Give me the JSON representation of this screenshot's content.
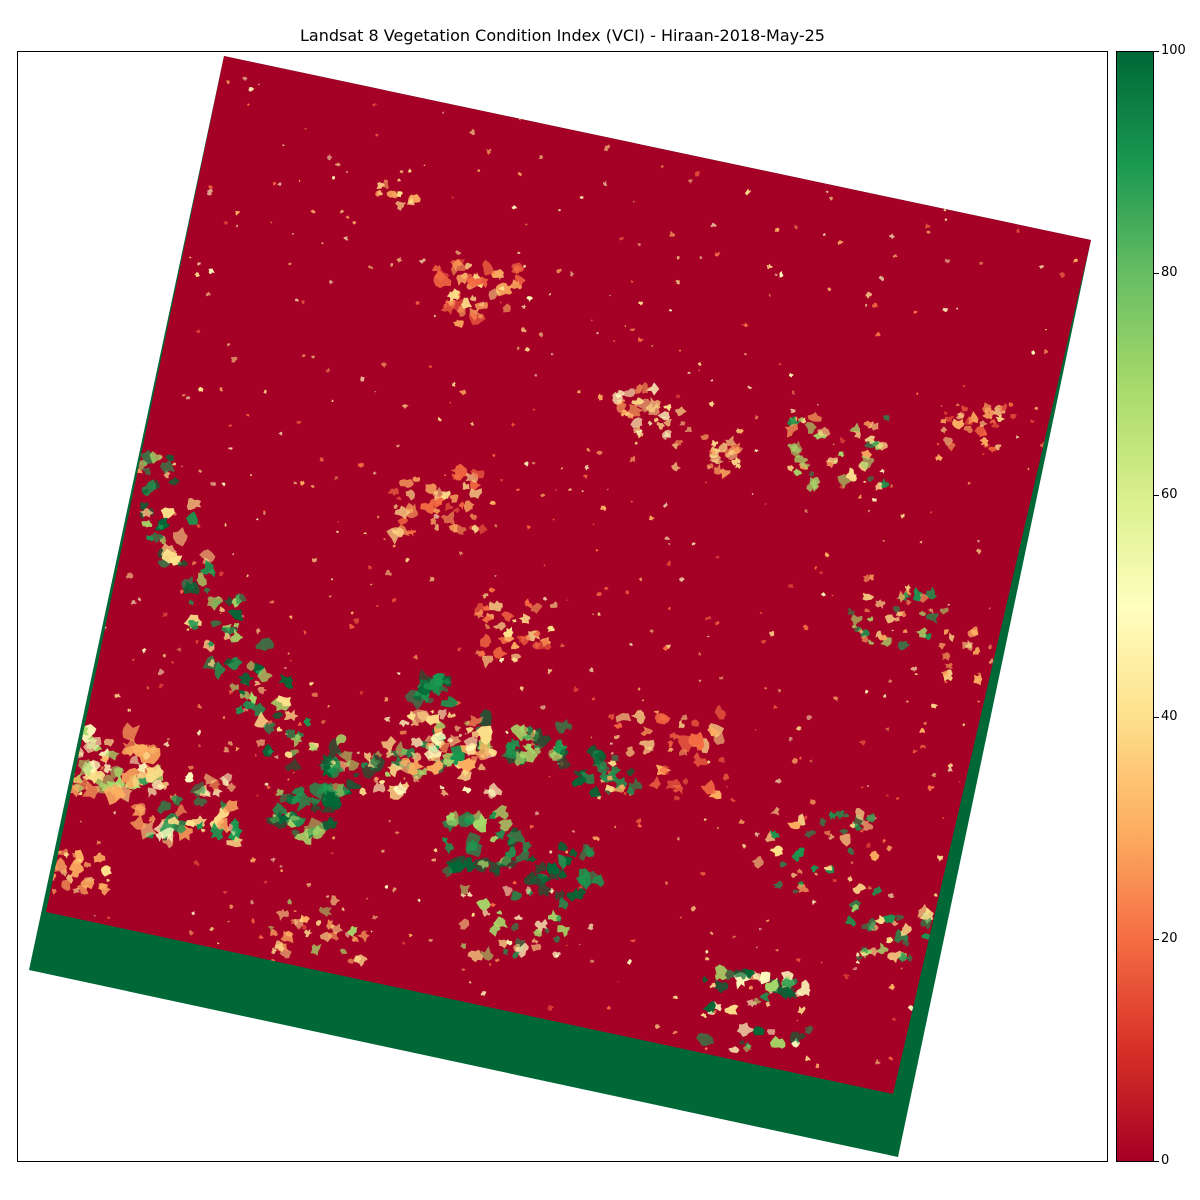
{
  "title": "Landsat 8 Vegetation Condition Index (VCI) - Hiraan-2018-May-25",
  "colorbar": {
    "colormap": "RdYlGn",
    "min": 0,
    "max": 100,
    "ticks": [
      {
        "value": 0,
        "label": "0"
      },
      {
        "value": 20,
        "label": "20"
      },
      {
        "value": 40,
        "label": "40"
      },
      {
        "value": 60,
        "label": "60"
      },
      {
        "value": 80,
        "label": "80"
      },
      {
        "value": 100,
        "label": "100"
      }
    ],
    "stops": [
      "#a50026",
      "#d73027",
      "#f46d43",
      "#fdae61",
      "#fee08b",
      "#ffffbf",
      "#d9ef8b",
      "#a6d96a",
      "#66bd63",
      "#1a9850",
      "#006837"
    ]
  },
  "map": {
    "background_class_color": "#a50026",
    "nodata_fill_color": "#006837",
    "patch_colors": {
      "orange": "#f46d43",
      "light_orange": "#fdae61",
      "yellow": "#fee08b",
      "pale_yellow": "#ffffbf",
      "light_green": "#a6d96a",
      "green": "#1a9850",
      "dark_green": "#006837"
    }
  }
}
